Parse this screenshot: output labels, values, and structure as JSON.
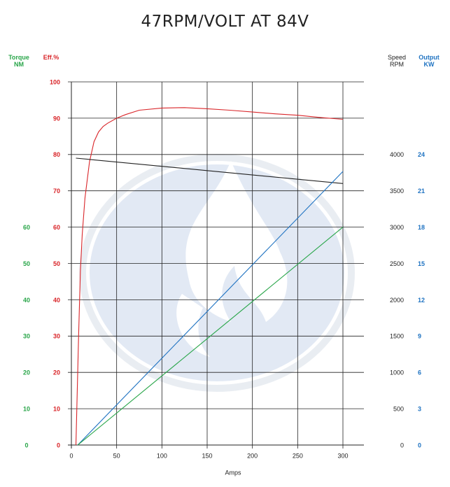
{
  "chart_data": {
    "type": "line",
    "title": "47RPM/VOLT AT 84V",
    "xlabel": "Amps",
    "xlim": [
      0,
      330
    ],
    "xticks": [
      0,
      50,
      100,
      150,
      200,
      250,
      300
    ],
    "axes": {
      "torque": {
        "label": "Torque NM",
        "ticks": [
          "0",
          "10",
          "20",
          "30",
          "40",
          "50",
          "60"
        ],
        "values": [
          0,
          10,
          20,
          30,
          40,
          50,
          60
        ],
        "ylim": [
          0,
          100
        ],
        "color": "#2aa64a"
      },
      "efficiency": {
        "label": "Eff.%",
        "ticks": [
          "0",
          "10",
          "20",
          "30",
          "40",
          "50",
          "60",
          "70",
          "80",
          "90",
          "100"
        ],
        "values": [
          0,
          10,
          20,
          30,
          40,
          50,
          60,
          70,
          80,
          90,
          100
        ],
        "ylim": [
          0,
          100
        ],
        "color": "#d9262a"
      },
      "speed": {
        "label": "Speed RPM",
        "ticks": [
          "0",
          "500",
          "1000",
          "1500",
          "2000",
          "2500",
          "3000",
          "3500",
          "4000"
        ],
        "values": [
          0,
          500,
          1000,
          1500,
          2000,
          2500,
          3000,
          3500,
          4000
        ],
        "ylim": [
          0,
          5000
        ],
        "color": "#222222"
      },
      "output": {
        "label": "Output KW",
        "ticks": [
          "0",
          "3",
          "6",
          "9",
          "12",
          "15",
          "18",
          "21",
          "24"
        ],
        "values": [
          0,
          3,
          6,
          9,
          12,
          15,
          18,
          21,
          24
        ],
        "ylim": [
          0,
          30
        ],
        "color": "#1f73c2"
      }
    },
    "series": [
      {
        "axis": "efficiency",
        "color": "#d9262a",
        "x": [
          5,
          8,
          10,
          12,
          15,
          18,
          20,
          25,
          30,
          35,
          40,
          50,
          60,
          75,
          100,
          125,
          150,
          175,
          200,
          225,
          250,
          275,
          300
        ],
        "y": [
          0,
          30,
          48,
          58,
          68,
          74,
          78,
          83.5,
          86.2,
          87.7,
          88.6,
          90,
          91,
          92.2,
          92.8,
          92.9,
          92.6,
          92.2,
          91.7,
          91.2,
          90.8,
          90.2,
          89.7
        ]
      },
      {
        "axis": "speed",
        "color": "#222222",
        "x": [
          5,
          300
        ],
        "y": [
          3950,
          3600
        ]
      },
      {
        "axis": "output",
        "color": "#1f73c2",
        "x": [
          7,
          300
        ],
        "y": [
          0,
          22.6
        ]
      },
      {
        "axis": "torque",
        "color": "#2aa64a",
        "x": [
          7,
          300
        ],
        "y": [
          0,
          60
        ]
      }
    ],
    "grid": true
  }
}
